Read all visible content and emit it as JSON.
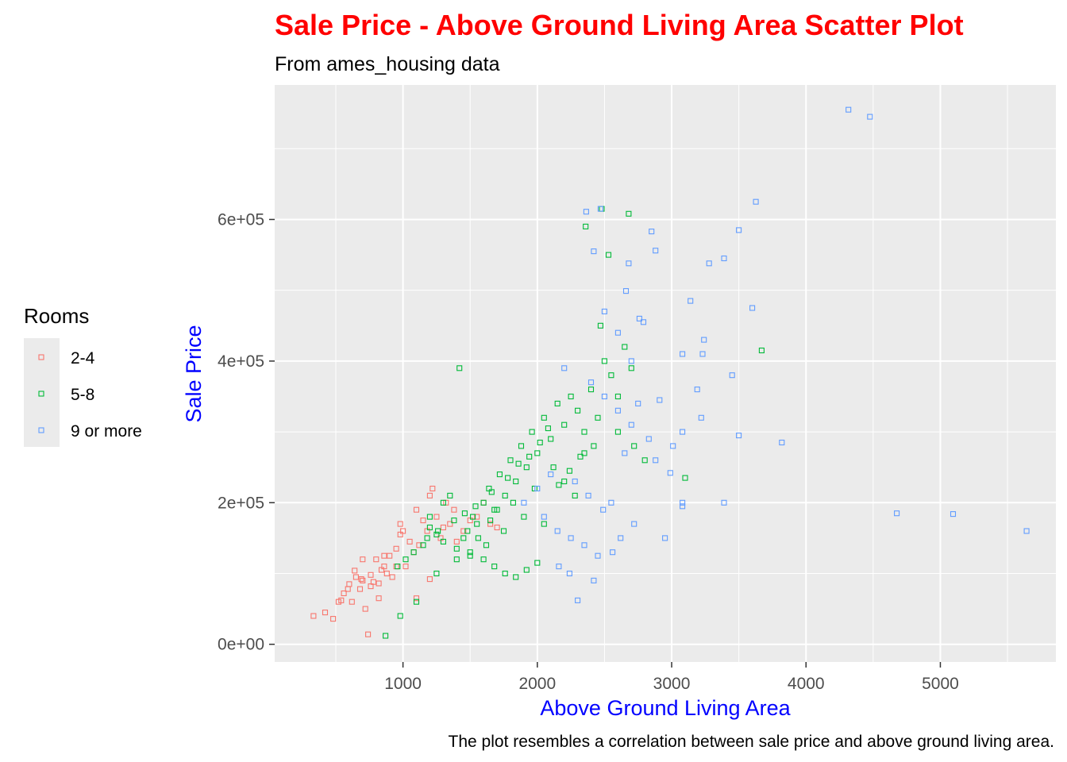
{
  "chart_data": {
    "type": "scatter",
    "title": "Sale Price - Above Ground Living Area Scatter Plot",
    "subtitle": "From ames_housing data",
    "caption": "The plot resembles a correlation between sale price and above ground living area.",
    "xlabel": "Above Ground Living Area",
    "ylabel": "Sale Price",
    "xlim": [
      45,
      5860
    ],
    "ylim": [
      -25000,
      790000
    ],
    "x_ticks": [
      1000,
      2000,
      3000,
      4000,
      5000
    ],
    "x_tick_labels": [
      "1000",
      "2000",
      "3000",
      "4000",
      "5000"
    ],
    "y_ticks": [
      0,
      200000,
      400000,
      600000
    ],
    "y_tick_labels": [
      "0e+00",
      "2e+05",
      "4e+05",
      "6e+05"
    ],
    "legend_title": "Rooms",
    "legend_position": "left",
    "grid": true,
    "marker": "open-square",
    "series": [
      {
        "name": "2-4",
        "color": "#F8766D",
        "x": [
          334,
          420,
          480,
          520,
          540,
          560,
          600,
          620,
          650,
          680,
          700,
          720,
          740,
          760,
          780,
          800,
          820,
          840,
          860,
          880,
          900,
          920,
          950,
          980,
          1000,
          1020,
          1050,
          1080,
          1100,
          1120,
          1150,
          1180,
          1200,
          1220,
          1250,
          1280,
          1300,
          1320,
          1350,
          1380,
          1400,
          1450,
          1500,
          1550,
          1600,
          1650,
          1700,
          1100,
          980,
          860,
          760,
          690,
          640,
          590,
          700,
          820,
          950,
          1200
        ],
        "y": [
          40000,
          45000,
          36000,
          60000,
          62000,
          72000,
          85000,
          60000,
          95000,
          78000,
          90000,
          50000,
          14000,
          98000,
          88000,
          120000,
          65000,
          105000,
          110000,
          100000,
          125000,
          95000,
          135000,
          170000,
          160000,
          110000,
          145000,
          130000,
          190000,
          140000,
          175000,
          160000,
          210000,
          220000,
          180000,
          150000,
          165000,
          200000,
          170000,
          190000,
          145000,
          160000,
          175000,
          180000,
          200000,
          170000,
          165000,
          65000,
          155000,
          125000,
          82000,
          92000,
          104000,
          78000,
          120000,
          86000,
          110000,
          92000
        ]
      },
      {
        "name": "5-8",
        "color": "#00BA38",
        "x": [
          870,
          980,
          1100,
          1250,
          1400,
          1480,
          1520,
          1560,
          1600,
          1640,
          1680,
          1720,
          1760,
          1800,
          1840,
          1880,
          1920,
          1960,
          2000,
          2050,
          2100,
          2150,
          2200,
          2250,
          2300,
          2350,
          2400,
          2450,
          2500,
          2550,
          2600,
          2650,
          2700,
          2360,
          2480,
          2680,
          2530,
          2470,
          3100,
          3670,
          1420,
          1200,
          1300,
          1350,
          1450,
          1500,
          1550,
          1620,
          1700,
          1750,
          1820,
          1900,
          1980,
          2050,
          2120,
          2200,
          2280,
          2350,
          2420,
          1150,
          1080,
          1020,
          960,
          1180,
          1260,
          1380,
          1460,
          1540,
          1660,
          1780,
          1860,
          1940,
          2020,
          2080,
          2160,
          2240,
          2320,
          2600,
          2720,
          2800,
          1600,
          1680,
          1760,
          1840,
          1920,
          2000,
          1500,
          1400,
          1300,
          1250,
          1200,
          1650
        ],
        "y": [
          12000,
          40000,
          60000,
          100000,
          120000,
          160000,
          180000,
          150000,
          200000,
          220000,
          190000,
          240000,
          210000,
          260000,
          230000,
          280000,
          250000,
          300000,
          270000,
          320000,
          290000,
          340000,
          310000,
          350000,
          330000,
          300000,
          360000,
          320000,
          400000,
          380000,
          350000,
          420000,
          390000,
          590000,
          615000,
          608000,
          550000,
          450000,
          235000,
          415000,
          390000,
          180000,
          200000,
          210000,
          150000,
          130000,
          170000,
          140000,
          190000,
          160000,
          200000,
          180000,
          220000,
          170000,
          250000,
          230000,
          210000,
          270000,
          280000,
          140000,
          130000,
          120000,
          110000,
          150000,
          160000,
          175000,
          185000,
          195000,
          215000,
          235000,
          255000,
          265000,
          285000,
          305000,
          225000,
          245000,
          265000,
          300000,
          280000,
          260000,
          120000,
          110000,
          100000,
          95000,
          105000,
          115000,
          125000,
          135000,
          145000,
          155000,
          165000,
          175000
        ]
      },
      {
        "name": "9 or more",
        "color": "#619CFF",
        "x": [
          4316,
          4476,
          3627,
          3500,
          2364,
          2470,
          2850,
          2880,
          2680,
          2420,
          3279,
          3390,
          2660,
          3140,
          3600,
          2760,
          2790,
          3080,
          3240,
          3230,
          3450,
          3190,
          2910,
          3080,
          3220,
          3500,
          3820,
          2990,
          3010,
          2950,
          3080,
          3080,
          3390,
          4676,
          5095,
          5642,
          2300,
          2420,
          2240,
          2160,
          2560,
          2620,
          2720,
          2490,
          2380,
          2280,
          2880,
          2830,
          2700,
          2600,
          2500,
          2400,
          2200,
          2100,
          2000,
          1900,
          2050,
          2150,
          2250,
          2350,
          2450,
          2550,
          2650,
          2750,
          2700,
          2600,
          2500
        ],
        "y": [
          755000,
          745000,
          625000,
          585000,
          611000,
          615000,
          583000,
          556000,
          538000,
          555000,
          538000,
          545000,
          499000,
          485000,
          475000,
          460000,
          455000,
          410000,
          430000,
          410000,
          380000,
          360000,
          345000,
          300000,
          320000,
          295000,
          285000,
          242000,
          280000,
          150000,
          200000,
          195000,
          200000,
          185000,
          184000,
          160000,
          62000,
          90000,
          100000,
          110000,
          130000,
          150000,
          170000,
          190000,
          210000,
          230000,
          260000,
          290000,
          310000,
          330000,
          350000,
          370000,
          390000,
          240000,
          220000,
          200000,
          180000,
          160000,
          150000,
          140000,
          125000,
          200000,
          270000,
          340000,
          400000,
          440000,
          470000
        ]
      }
    ]
  }
}
